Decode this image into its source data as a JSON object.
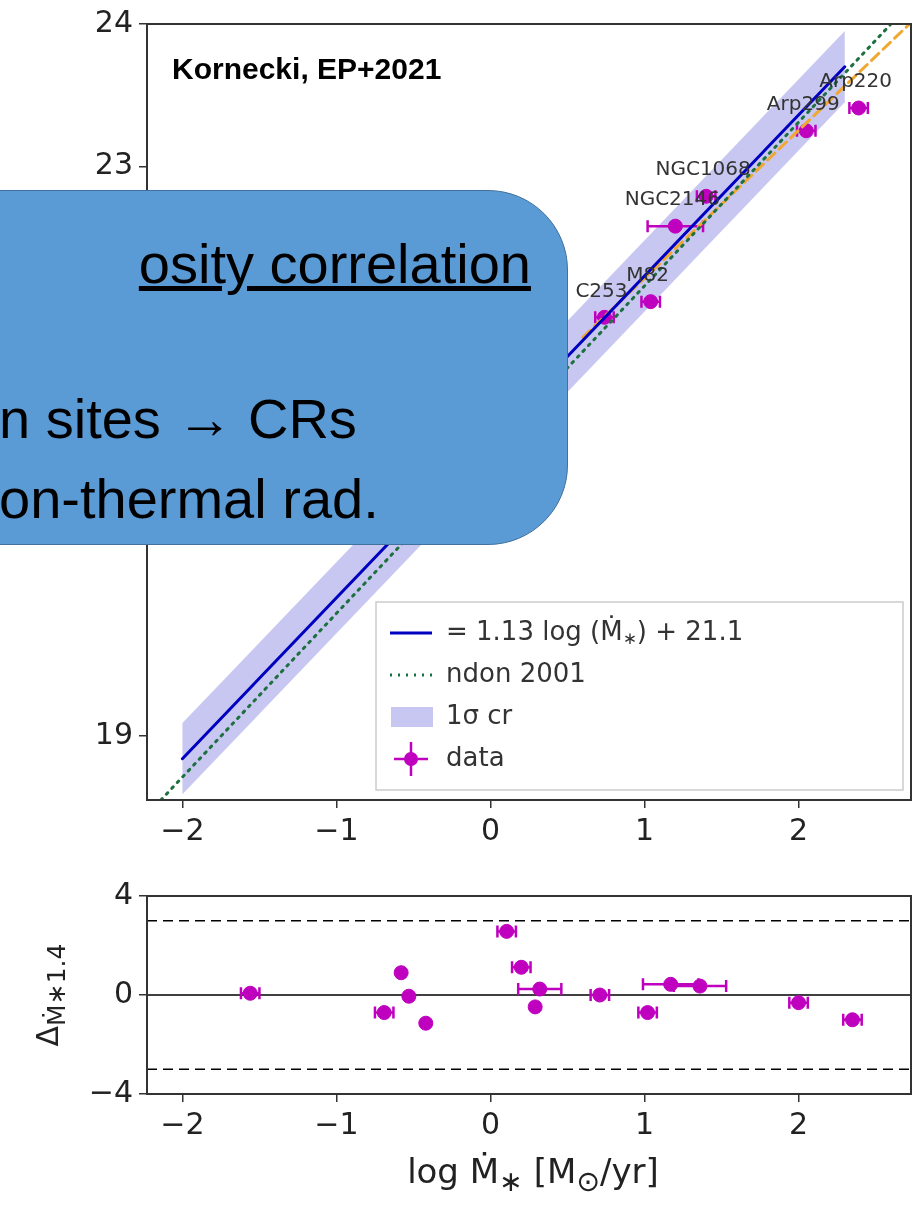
{
  "chart_data": [
    {
      "type": "scatter",
      "xlim": [
        -2.23,
        2.73
      ],
      "ylim": [
        18.55,
        24
      ],
      "xticks": [
        -2,
        -1,
        0,
        1,
        2
      ],
      "yticks": [
        19,
        23,
        24
      ],
      "legend": "bottom right",
      "annotations": [
        "Kornecki, EP+2021",
        "osity correlation",
        "n sites → CRs",
        "on-thermal rad.",
        "1σ cr",
        {
          "text": "Arp220",
          "x": 2.39,
          "y": 23.41
        },
        {
          "text": "Arp299",
          "x": 2.05,
          "y": 23.25
        },
        {
          "text": "NGC1068",
          "x": 1.4,
          "y": 22.79
        },
        {
          "text": "NGC2146",
          "x": 1.2,
          "y": 22.58
        },
        {
          "text": "M82",
          "x": 1.04,
          "y": 22.05
        },
        {
          "text": "C253",
          "x": 0.74,
          "y": 21.94
        }
      ],
      "series": [
        {
          "type": "line",
          "name": "= 1.13 log (Ṁ$_{∗}$) + 21.1",
          "color": "#0000c0",
          "line_style": "solid",
          "x": [
            -2.0,
            2.3
          ],
          "values": [
            18.84,
            23.7
          ],
          "lower": [
            18.59,
            23.45
          ],
          "upper": [
            19.09,
            23.95
          ]
        },
        {
          "type": "line",
          "name": "ndon 2001",
          "color": "#1e7040",
          "line_style": "dotted",
          "x": [
            -2.14,
            2.6
          ],
          "values": [
            18.55,
            24.0
          ]
        },
        {
          "type": "line",
          "color": "#f0a830",
          "line_style": "dashed",
          "x": [
            0.6,
            2.72
          ],
          "values": [
            21.8,
            24.0
          ]
        },
        {
          "type": "scatter",
          "name": "data",
          "color": "#bf00bf",
          "marker": "circle",
          "x": [
            0.74,
            1.04,
            1.2,
            1.4,
            2.05,
            2.39
          ],
          "values": [
            21.94,
            22.05,
            22.58,
            22.79,
            23.25,
            23.41
          ],
          "xerrors": [
            0.06,
            0.06,
            0.18,
            0.06,
            0.06,
            0.06
          ]
        }
      ]
    },
    {
      "type": "scatter",
      "xlim": [
        -2.23,
        2.73
      ],
      "ylim": [
        -4,
        4
      ],
      "xticks": [
        -2,
        -1,
        0,
        1,
        2
      ],
      "yticks": [
        -4,
        0,
        4
      ],
      "xlabel": "log Ṁ$_{∗}$  [M$_{⊙}$/yr]",
      "ylabel": "Δ$_{Ṁ∗1.4}$",
      "ref_lines": [
        {
          "axis": "y",
          "value": 3,
          "line_style": "dashed",
          "color": "#000000"
        },
        {
          "axis": "y",
          "value": -3,
          "line_style": "dashed",
          "color": "#000000"
        },
        {
          "axis": "y",
          "value": 0,
          "line_style": "solid",
          "color": "#000000"
        }
      ],
      "series": [
        {
          "type": "scatter",
          "color": "#bf00bf",
          "marker": "circle",
          "x": [
            -1.56,
            -0.69,
            -0.58,
            -0.53,
            -0.42,
            0.105,
            0.2,
            0.29,
            0.32,
            0.71,
            1.02,
            1.17,
            1.36,
            2.0,
            2.35
          ],
          "values": [
            0.07,
            -0.71,
            0.9,
            -0.05,
            -1.14,
            2.57,
            1.12,
            -0.48,
            0.24,
            0.0,
            -0.71,
            0.43,
            0.36,
            -0.31,
            -1.0
          ],
          "xerrors": [
            0.06,
            0.06,
            null,
            null,
            null,
            0.06,
            0.06,
            null,
            0.14,
            0.06,
            0.06,
            0.18,
            0.17,
            0.06,
            0.06
          ]
        }
      ]
    }
  ]
}
